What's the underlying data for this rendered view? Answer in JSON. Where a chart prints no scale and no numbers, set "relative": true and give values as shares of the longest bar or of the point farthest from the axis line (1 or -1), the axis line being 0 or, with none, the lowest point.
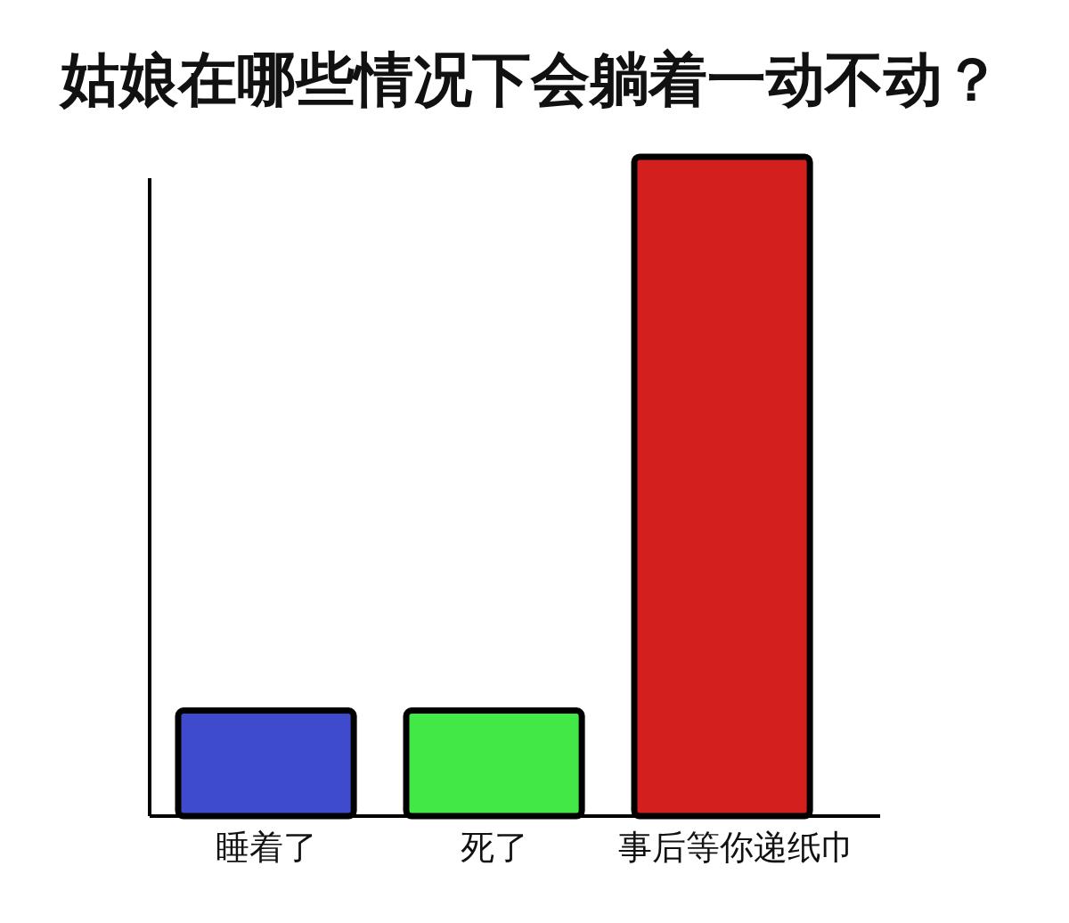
{
  "chart_data": {
    "type": "bar",
    "title": "姑娘在哪些情况下会躺着一动不动？",
    "categories": [
      "睡着了",
      "死了",
      "事后等你递纸巾"
    ],
    "values": [
      0.16,
      0.16,
      1
    ],
    "colors": [
      "#3d4bcc",
      "#42e846",
      "#d41f1f"
    ],
    "relative": true
  }
}
